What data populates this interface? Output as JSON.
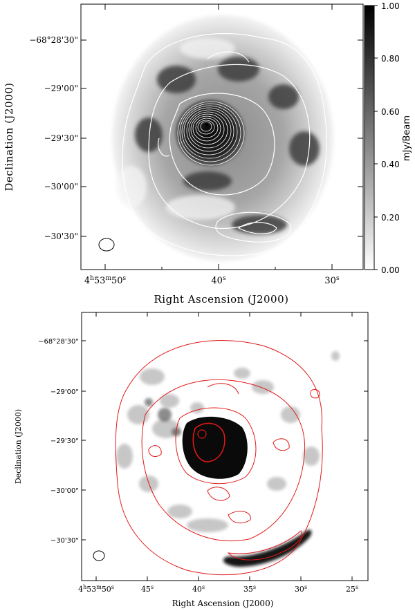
{
  "top_panel": {
    "ylabel": "Declination (J2000)",
    "xlabel": "Right Ascension (J2000)",
    "y_ticks": [
      "−68°28'30\"",
      "−29'00\"",
      "−29'30\"",
      "−30'00\"",
      "−30'30\""
    ],
    "x_ticks": [
      {
        "h": "4",
        "m": "53",
        "s": "50"
      },
      {
        "s": "40"
      },
      {
        "s": "30"
      }
    ],
    "colorbar": {
      "label": "mJy/Beam",
      "ticks": [
        "1.00",
        "0.80",
        "0.60",
        "0.40",
        "0.20",
        "0.00"
      ],
      "range": [
        0.0,
        1.0
      ],
      "colormap": "white-to-black"
    },
    "image_style": "grayscale radio map with white contours and beam ellipse"
  },
  "bottom_panel": {
    "ylabel": "Declination (J2000)",
    "xlabel": "Right Ascension (J2000)",
    "y_ticks": [
      "−68°28'30\"",
      "−29'00\"",
      "−29'30\"",
      "−30'00\"",
      "−30'30\""
    ],
    "x_ticks": [
      {
        "h": "4",
        "m": "53",
        "s": "50"
      },
      {
        "s": "45"
      },
      {
        "s": "40"
      },
      {
        "s": "35"
      },
      {
        "s": "30"
      },
      {
        "s": "25"
      }
    ],
    "image_style": "grayscale map with red contours and beam ellipse"
  },
  "colors": {
    "contour_top": "#ffffff",
    "contour_bottom": "#e01818",
    "axes": "#000000"
  }
}
